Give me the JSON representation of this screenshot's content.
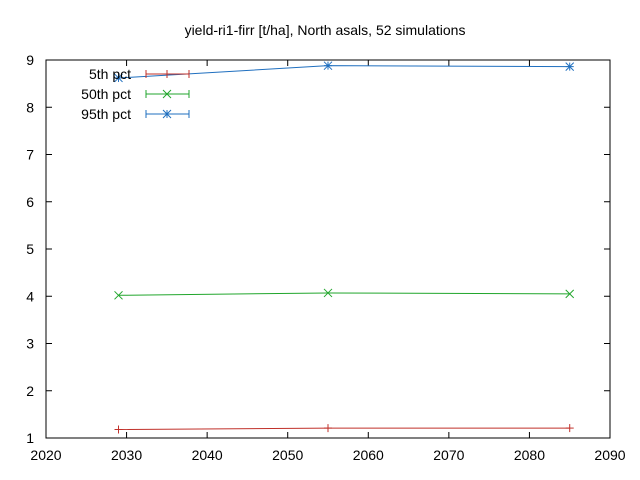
{
  "chart_data": {
    "type": "line",
    "title": "yield-ri1-firr [t/ha], North asals, 52 simulations",
    "xlabel": "",
    "ylabel": "",
    "xlim": [
      2020,
      2090
    ],
    "ylim": [
      1,
      9
    ],
    "xticks": [
      "2020",
      "2030",
      "2040",
      "2050",
      "2060",
      "2070",
      "2080",
      "2090"
    ],
    "yticks": [
      "1",
      "2",
      "3",
      "4",
      "5",
      "6",
      "7",
      "8",
      "9"
    ],
    "grid": false,
    "legend_position": "top-left",
    "series": [
      {
        "name": "5th pct",
        "color": "#c0302a",
        "marker": "plus",
        "x": [
          2029,
          2055,
          2085
        ],
        "y": [
          1.18,
          1.21,
          1.21
        ]
      },
      {
        "name": "50th pct",
        "color": "#21a62c",
        "marker": "cross",
        "x": [
          2029,
          2055,
          2085
        ],
        "y": [
          4.02,
          4.07,
          4.05
        ]
      },
      {
        "name": "95th pct",
        "color": "#1f6fbf",
        "marker": "star",
        "x": [
          2029,
          2055,
          2085
        ],
        "y": [
          8.62,
          8.88,
          8.86
        ]
      }
    ]
  }
}
